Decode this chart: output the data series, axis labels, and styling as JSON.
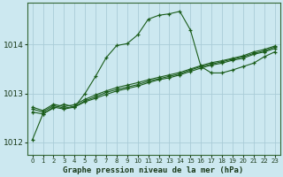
{
  "title": "Graphe pression niveau de la mer (hPa)",
  "bg_color": "#cce8f0",
  "grid_color": "#aaccd8",
  "line_color": "#1a5c1a",
  "xmin": 0,
  "xmax": 23,
  "ymin": 1011.75,
  "ymax": 1014.85,
  "yticks": [
    1012,
    1013,
    1014
  ],
  "xticks": [
    0,
    1,
    2,
    3,
    4,
    5,
    6,
    7,
    8,
    9,
    10,
    11,
    12,
    13,
    14,
    15,
    16,
    17,
    18,
    19,
    20,
    21,
    22,
    23
  ],
  "lines": [
    [
      1012.05,
      1012.58,
      1012.7,
      1012.78,
      1012.72,
      1013.0,
      1013.35,
      1013.73,
      1013.98,
      1014.02,
      1014.2,
      1014.52,
      1014.6,
      1014.63,
      1014.68,
      1014.3,
      1013.55,
      1013.42,
      1013.42,
      1013.48,
      1013.55,
      1013.62,
      1013.75,
      1013.85
    ],
    [
      1012.62,
      1012.58,
      1012.72,
      1012.68,
      1012.72,
      1012.83,
      1012.9,
      1012.98,
      1013.05,
      1013.1,
      1013.15,
      1013.22,
      1013.28,
      1013.32,
      1013.38,
      1013.45,
      1013.52,
      1013.58,
      1013.62,
      1013.68,
      1013.72,
      1013.8,
      1013.85,
      1013.92
    ],
    [
      1012.68,
      1012.62,
      1012.75,
      1012.7,
      1012.73,
      1012.85,
      1012.93,
      1013.02,
      1013.08,
      1013.13,
      1013.18,
      1013.25,
      1013.3,
      1013.35,
      1013.4,
      1013.48,
      1013.55,
      1013.6,
      1013.65,
      1013.7,
      1013.75,
      1013.82,
      1013.87,
      1013.95
    ],
    [
      1012.72,
      1012.65,
      1012.78,
      1012.73,
      1012.77,
      1012.88,
      1012.97,
      1013.05,
      1013.12,
      1013.17,
      1013.22,
      1013.28,
      1013.33,
      1013.38,
      1013.43,
      1013.5,
      1013.57,
      1013.63,
      1013.67,
      1013.72,
      1013.77,
      1013.85,
      1013.9,
      1013.97
    ]
  ]
}
